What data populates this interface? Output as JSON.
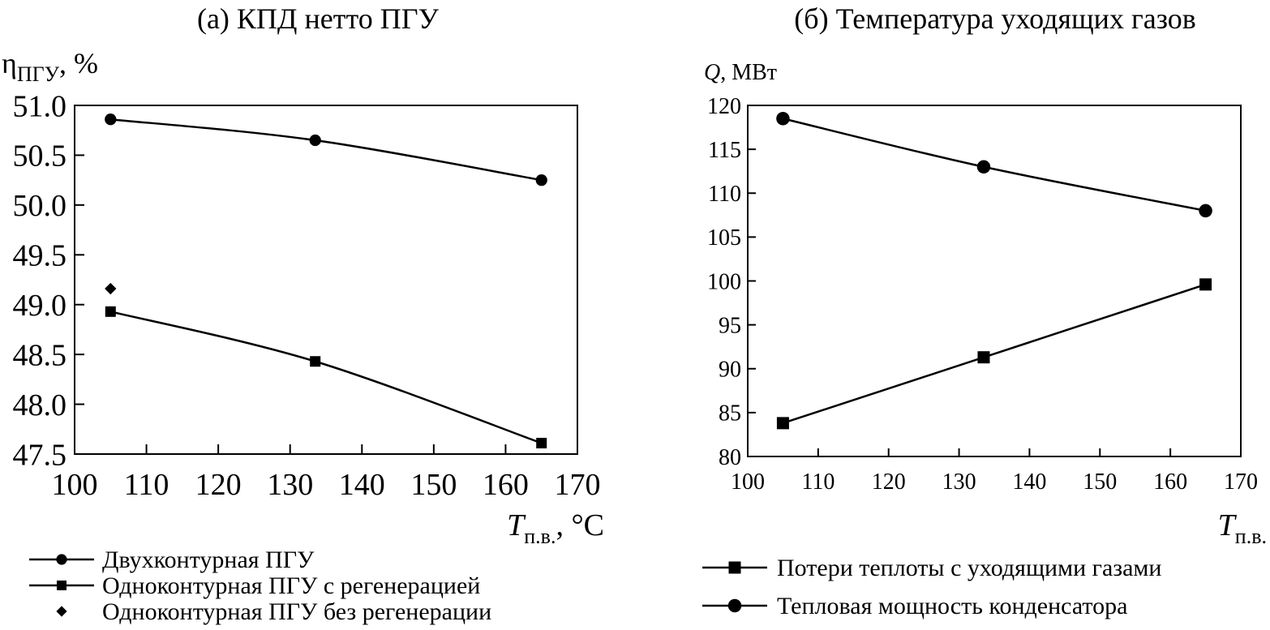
{
  "chart_data": [
    {
      "type": "line",
      "title": "(а) КПД нетто ПГУ",
      "ylabel": {
        "main": "η",
        "sub": "ПГУ",
        "rest": ", %"
      },
      "xlabel": {
        "main": "T",
        "sub": "п.в.",
        "rest": ", °C"
      },
      "x_ticks": [
        "100",
        "110",
        "120",
        "130",
        "140",
        "150",
        "160",
        "170"
      ],
      "y_ticks": [
        "51.0",
        "50.5",
        "50.0",
        "49.5",
        "49.0",
        "48.5",
        "48.0",
        "47.5"
      ],
      "xlim": [
        100,
        170
      ],
      "ylim": [
        47.5,
        51.0
      ],
      "series": [
        {
          "name": "Двухконтурная ПГУ",
          "marker": "circle",
          "line": true,
          "x": [
            105,
            133.5,
            165
          ],
          "y": [
            50.86,
            50.65,
            50.25
          ]
        },
        {
          "name": "Одноконтурная ПГУ с регенерацией",
          "marker": "square",
          "line": true,
          "x": [
            105,
            133.5,
            165
          ],
          "y": [
            48.93,
            48.43,
            47.61
          ]
        },
        {
          "name": "Одноконтурная ПГУ без регенерации",
          "marker": "diamond",
          "line": false,
          "x": [
            105
          ],
          "y": [
            49.16
          ]
        }
      ]
    },
    {
      "type": "line",
      "title": "(б) Температура уходящих газов",
      "ylabel": {
        "main": "Q",
        "rest": ", МВт"
      },
      "xlabel": {
        "main": "T",
        "sub": "п.в."
      },
      "x_ticks": [
        "100",
        "110",
        "120",
        "130",
        "140",
        "150",
        "160",
        "170"
      ],
      "y_ticks": [
        "120",
        "115",
        "110",
        "105",
        "100",
        "95",
        "90",
        "85",
        "80"
      ],
      "xlim": [
        100,
        170
      ],
      "ylim": [
        80,
        120
      ],
      "series": [
        {
          "name": "Потери теплоты с уходящими газами",
          "marker": "square",
          "line": true,
          "x": [
            105,
            133.5,
            165
          ],
          "y": [
            83.8,
            91.3,
            99.6
          ]
        },
        {
          "name": "Тепловая мощность конденсатора",
          "marker": "circle",
          "line": true,
          "x": [
            105,
            133.5,
            165
          ],
          "y": [
            118.5,
            113.0,
            108.0
          ]
        }
      ]
    }
  ]
}
